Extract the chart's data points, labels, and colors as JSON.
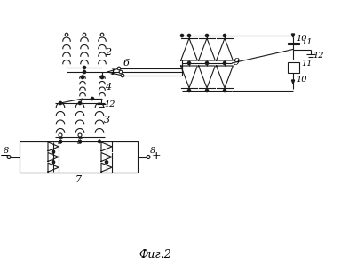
{
  "bg": "#ffffff",
  "lc": "#1a1a1a",
  "fig_w": 3.84,
  "fig_h": 2.98,
  "dpi": 100,
  "caption": "Фиг.2"
}
